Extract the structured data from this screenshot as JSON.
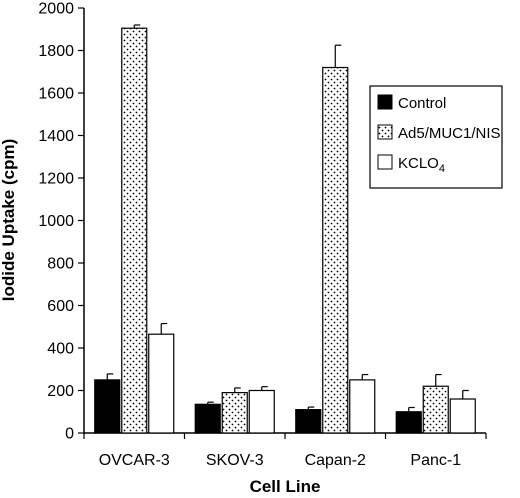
{
  "chart_data": {
    "type": "bar",
    "title": "",
    "xlabel": "Cell Line",
    "ylabel": "Iodide Uptake (cpm)",
    "ylim": [
      0,
      2000
    ],
    "yticks": [
      0,
      200,
      400,
      600,
      800,
      1000,
      1200,
      1400,
      1600,
      1800,
      2000
    ],
    "categories": [
      "OVCAR-3",
      "SKOV-3",
      "Capan-2",
      "Panc-1"
    ],
    "series": [
      {
        "name": "Control",
        "values": [
          250,
          135,
          110,
          100
        ],
        "errors": [
          28,
          10,
          12,
          20
        ],
        "fill": "solid-black"
      },
      {
        "name": "Ad5/MUC1/NIS",
        "values": [
          1905,
          190,
          1720,
          220
        ],
        "errors": [
          15,
          22,
          105,
          55
        ],
        "fill": "dotted"
      },
      {
        "name": "KCLO",
        "name_subscript": "4",
        "values": [
          465,
          200,
          250,
          160
        ],
        "errors": [
          50,
          18,
          25,
          40
        ],
        "fill": "white"
      }
    ],
    "legend": {
      "position": "right",
      "items": [
        "Control",
        "Ad5/MUC1/NIS",
        "KCLO4"
      ]
    },
    "grid": false
  }
}
